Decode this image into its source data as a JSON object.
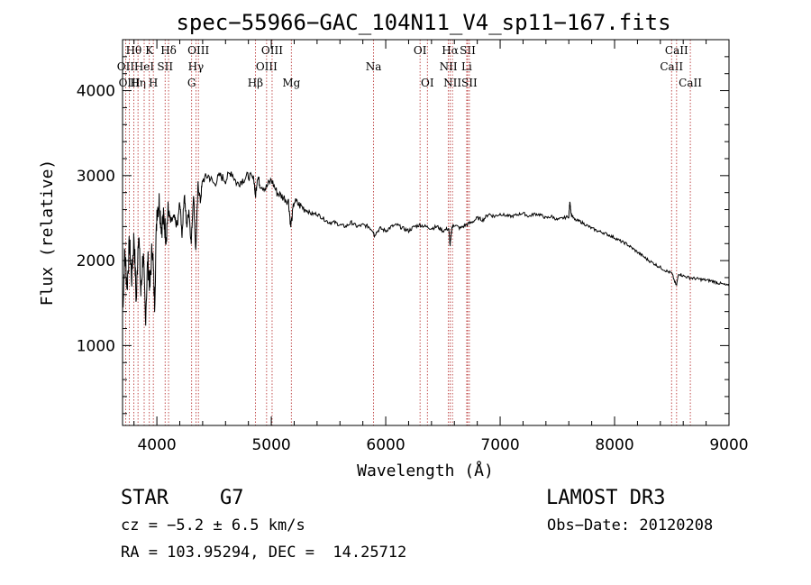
{
  "chart_data": {
    "type": "line",
    "title": "spec−55966−GAC_104N11_V4_sp11−167.fits",
    "xlabel": "Wavelength (Å)",
    "ylabel": "Flux (relative)",
    "xlim": [
      3700,
      9000
    ],
    "ylim": [
      60,
      4600
    ],
    "xticks": [
      4000,
      5000,
      6000,
      7000,
      8000,
      9000
    ],
    "xtick_labels": [
      "4000",
      "5000",
      "6000",
      "7000",
      "8000",
      "9000"
    ],
    "yticks": [
      1000,
      2000,
      3000,
      4000
    ],
    "ytick_labels": [
      "1000",
      "2000",
      "3000",
      "4000"
    ],
    "grid": false,
    "line_color": "#000000",
    "marker_color": "#b22222",
    "series": [
      {
        "name": "flux",
        "x": [
          3700,
          3720,
          3740,
          3760,
          3780,
          3800,
          3820,
          3840,
          3860,
          3880,
          3900,
          3920,
          3940,
          3960,
          3980,
          4000,
          4020,
          4040,
          4060,
          4080,
          4100,
          4120,
          4150,
          4180,
          4200,
          4220,
          4240,
          4260,
          4280,
          4300,
          4320,
          4340,
          4360,
          4380,
          4400,
          4450,
          4500,
          4550,
          4600,
          4650,
          4700,
          4750,
          4800,
          4850,
          4861,
          4880,
          4900,
          4950,
          5000,
          5050,
          5100,
          5150,
          5170,
          5200,
          5250,
          5300,
          5350,
          5400,
          5450,
          5500,
          5550,
          5600,
          5650,
          5700,
          5750,
          5800,
          5850,
          5890,
          5900,
          5950,
          6000,
          6050,
          6100,
          6150,
          6200,
          6250,
          6300,
          6350,
          6400,
          6450,
          6500,
          6550,
          6563,
          6580,
          6600,
          6650,
          6700,
          6750,
          6800,
          6850,
          6900,
          6950,
          7000,
          7050,
          7100,
          7150,
          7200,
          7250,
          7300,
          7350,
          7400,
          7450,
          7500,
          7550,
          7600,
          7610,
          7620,
          7650,
          7700,
          7750,
          7800,
          7850,
          7900,
          7950,
          8000,
          8050,
          8100,
          8150,
          8200,
          8250,
          8300,
          8350,
          8400,
          8450,
          8500,
          8540,
          8560,
          8600,
          8650,
          8700,
          8750,
          8800,
          8850,
          8900,
          8950,
          9000
        ],
        "y": [
          1400,
          2100,
          1700,
          2200,
          1800,
          2300,
          1500,
          2400,
          1600,
          2100,
          1300,
          2000,
          1700,
          2200,
          1500,
          2600,
          2700,
          2400,
          2500,
          2300,
          2600,
          2450,
          2500,
          2400,
          2700,
          2300,
          2800,
          2400,
          2600,
          2200,
          2800,
          2100,
          2900,
          2700,
          2950,
          3000,
          2900,
          3000,
          2950,
          3050,
          2900,
          2950,
          3000,
          2950,
          2750,
          3000,
          2900,
          2850,
          2950,
          2800,
          2750,
          2700,
          2400,
          2700,
          2650,
          2600,
          2550,
          2550,
          2500,
          2450,
          2450,
          2420,
          2400,
          2450,
          2400,
          2420,
          2400,
          2350,
          2300,
          2380,
          2350,
          2400,
          2420,
          2380,
          2350,
          2400,
          2420,
          2400,
          2380,
          2400,
          2350,
          2380,
          2180,
          2400,
          2420,
          2380,
          2420,
          2450,
          2500,
          2480,
          2550,
          2520,
          2550,
          2530,
          2520,
          2540,
          2560,
          2520,
          2550,
          2540,
          2500,
          2520,
          2480,
          2500,
          2520,
          2700,
          2550,
          2480,
          2460,
          2420,
          2380,
          2350,
          2330,
          2300,
          2270,
          2230,
          2200,
          2150,
          2100,
          2050,
          2000,
          1960,
          1920,
          1880,
          1850,
          1700,
          1850,
          1820,
          1800,
          1790,
          1780,
          1770,
          1760,
          1740,
          1720,
          1700
        ]
      }
    ],
    "lines": [
      {
        "name": "Hθ",
        "x": 3798,
        "row": 0
      },
      {
        "name": "OII",
        "x": 3727,
        "row": 1
      },
      {
        "name": "OIII",
        "x": 3760,
        "row": 2
      },
      {
        "name": "Hη",
        "x": 3835,
        "row": 2
      },
      {
        "name": "HeI",
        "x": 3889,
        "row": 1
      },
      {
        "name": "K",
        "x": 3934,
        "row": 0
      },
      {
        "name": "H",
        "x": 3969,
        "row": 2
      },
      {
        "name": "SII",
        "x": 4072,
        "row": 1
      },
      {
        "name": "Hδ",
        "x": 4102,
        "row": 0
      },
      {
        "name": "G",
        "x": 4304,
        "row": 2
      },
      {
        "name": "Hγ",
        "x": 4341,
        "row": 1
      },
      {
        "name": "OIII",
        "x": 4363,
        "row": 0
      },
      {
        "name": "Hβ",
        "x": 4861,
        "row": 2
      },
      {
        "name": "OIII",
        "x": 4959,
        "row": 1
      },
      {
        "name": "OIII",
        "x": 5007,
        "row": 0
      },
      {
        "name": "Mg",
        "x": 5175,
        "row": 2
      },
      {
        "name": "Na",
        "x": 5894,
        "row": 1
      },
      {
        "name": "OI",
        "x": 6300,
        "row": 0
      },
      {
        "name": "OI",
        "x": 6364,
        "row": 2
      },
      {
        "name": "NII",
        "x": 6548,
        "row": 1
      },
      {
        "name": "Hα",
        "x": 6563,
        "row": 0
      },
      {
        "name": "NII",
        "x": 6583,
        "row": 2
      },
      {
        "name": "Li",
        "x": 6708,
        "row": 1
      },
      {
        "name": "SII",
        "x": 6716,
        "row": 0
      },
      {
        "name": "SII",
        "x": 6731,
        "row": 2
      },
      {
        "name": "CaII",
        "x": 8498,
        "row": 1
      },
      {
        "name": "CaII",
        "x": 8542,
        "row": 0
      },
      {
        "name": "CaII",
        "x": 8662,
        "row": 2
      }
    ]
  },
  "info": {
    "object_class": "STAR",
    "subclass": "G7",
    "survey": "LAMOST DR3",
    "velocity": "cz = −5.2 ± 6.5 km/s",
    "obs_date": "Obs−Date: 20120208",
    "coords": "RA = 103.95294, DEC =  14.25712"
  }
}
